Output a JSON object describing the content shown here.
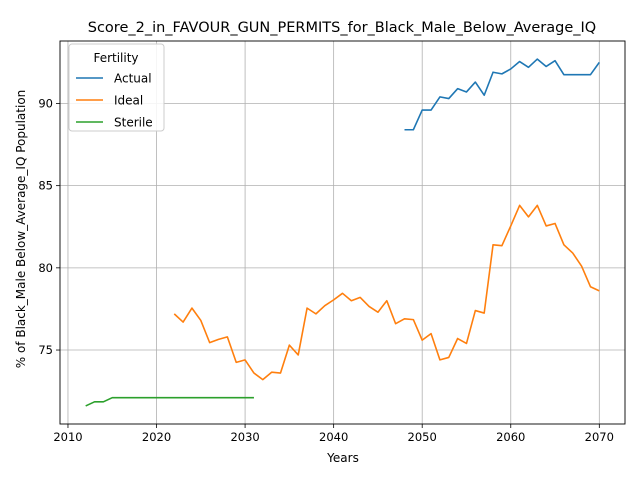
{
  "chart_data": {
    "type": "line",
    "title": "Score_2_in_FAVOUR_GUN_PERMITS_for_Black_Male_Below_Average_IQ",
    "xlabel": "Years",
    "ylabel": "% of Black_Male Below_Average_IQ Population",
    "xlim": [
      2009.1,
      2072.9
    ],
    "ylim": [
      70.5,
      93.8
    ],
    "xticks": [
      2010,
      2020,
      2030,
      2040,
      2050,
      2060,
      2070
    ],
    "yticks": [
      75,
      80,
      85,
      90
    ],
    "grid": true,
    "legend": {
      "title": "Fertility",
      "placement": "top-left"
    },
    "series": [
      {
        "name": "Actual",
        "color": "#1f77b4",
        "x": [
          2048,
          2049,
          2050,
          2051,
          2052,
          2053,
          2054,
          2055,
          2056,
          2057,
          2058,
          2059,
          2060,
          2061,
          2062,
          2063,
          2064,
          2065,
          2066,
          2067,
          2068,
          2069,
          2070
        ],
        "y": [
          88.4,
          88.4,
          89.6,
          89.6,
          90.4,
          90.3,
          90.9,
          90.7,
          91.3,
          90.5,
          91.9,
          91.8,
          92.1,
          92.55,
          92.2,
          92.7,
          92.25,
          92.6,
          91.75,
          91.75,
          91.75,
          91.75,
          92.5
        ]
      },
      {
        "name": "Ideal",
        "color": "#ff7f0e",
        "x": [
          2022,
          2023,
          2024,
          2025,
          2026,
          2027,
          2028,
          2029,
          2030,
          2031,
          2032,
          2033,
          2034,
          2035,
          2036,
          2037,
          2038,
          2039,
          2040,
          2041,
          2042,
          2043,
          2044,
          2045,
          2046,
          2047,
          2048,
          2049,
          2050,
          2051,
          2052,
          2053,
          2054,
          2055,
          2056,
          2057,
          2058,
          2059,
          2060,
          2061,
          2062,
          2063,
          2064,
          2065,
          2066,
          2067,
          2068,
          2069,
          2070
        ],
        "y": [
          77.2,
          76.7,
          77.55,
          76.8,
          75.45,
          75.65,
          75.8,
          74.25,
          74.4,
          73.6,
          73.2,
          73.65,
          73.6,
          75.3,
          74.7,
          77.55,
          77.2,
          77.7,
          78.05,
          78.45,
          78.0,
          78.2,
          77.65,
          77.3,
          78.0,
          76.6,
          76.9,
          76.85,
          75.6,
          76.0,
          74.4,
          74.55,
          75.7,
          75.4,
          77.4,
          77.25,
          81.4,
          81.35,
          82.55,
          83.8,
          83.1,
          83.8,
          82.55,
          82.7,
          81.4,
          80.9,
          80.1,
          78.85,
          78.6
        ]
      },
      {
        "name": "Sterile",
        "color": "#2ca02c",
        "x": [
          2012,
          2013,
          2014,
          2015,
          2016,
          2017,
          2018,
          2019,
          2020,
          2021,
          2022,
          2023,
          2024,
          2025,
          2026,
          2027,
          2028,
          2029,
          2030,
          2031
        ],
        "y": [
          71.6,
          71.85,
          71.85,
          72.1,
          72.1,
          72.1,
          72.1,
          72.1,
          72.1,
          72.1,
          72.1,
          72.1,
          72.1,
          72.1,
          72.1,
          72.1,
          72.1,
          72.1,
          72.1,
          72.1
        ]
      }
    ]
  }
}
